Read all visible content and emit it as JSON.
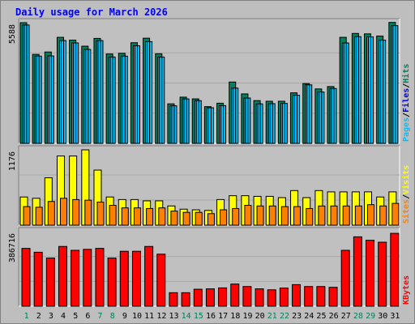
{
  "title": "Daily usage for March 2026",
  "colors": {
    "hits": "#00805c",
    "files": "#00c0ff",
    "pages": "#00c0ff",
    "visits": "#ffff00",
    "sites": "#ff8000",
    "kbytes": "#ff0000",
    "title": "#0000ff",
    "weekend_day": "#00805c",
    "weekday_day": "#0000ff",
    "panel": "#c0c0c0"
  },
  "chart_data": [
    {
      "type": "bar",
      "panel": "hits-files-pages",
      "ymax_label": "5588",
      "ylim": [
        0,
        5588
      ],
      "legend": [
        {
          "text": "Pages",
          "color": "#00c0ff"
        },
        {
          "text": "Files",
          "color": "#0000ff"
        },
        {
          "text": "Hits",
          "color": "#00805c"
        }
      ],
      "categories": [
        "1",
        "2",
        "3",
        "4",
        "5",
        "6",
        "7",
        "8",
        "9",
        "10",
        "11",
        "12",
        "13",
        "14",
        "15",
        "16",
        "17",
        "18",
        "19",
        "20",
        "21",
        "22",
        "23",
        "24",
        "25",
        "26",
        "27",
        "28",
        "29",
        "30",
        "31"
      ],
      "series": [
        {
          "name": "Hits",
          "values": [
            5588,
            4120,
            4230,
            4910,
            4780,
            4500,
            4860,
            4140,
            4170,
            4660,
            4870,
            4150,
            1830,
            2140,
            2060,
            1700,
            1860,
            2840,
            2290,
            1980,
            1950,
            1950,
            2340,
            2770,
            2520,
            2630,
            4910,
            5090,
            5070,
            4970,
            5600
          ]
        },
        {
          "name": "Files",
          "values": [
            5480,
            4040,
            4050,
            4760,
            4650,
            4350,
            4760,
            4000,
            4040,
            4520,
            4710,
            4000,
            1740,
            2060,
            1980,
            1650,
            1750,
            2560,
            2100,
            1830,
            1840,
            1850,
            2230,
            2710,
            2380,
            2540,
            4650,
            4940,
            4930,
            4780,
            5450
          ]
        },
        {
          "name": "Pages",
          "values": [
            5480,
            4040,
            4050,
            4760,
            4650,
            4350,
            4760,
            4000,
            4040,
            4520,
            4710,
            4000,
            1740,
            2060,
            1980,
            1650,
            1750,
            2560,
            2100,
            1830,
            1840,
            1850,
            2230,
            2710,
            2380,
            2540,
            4650,
            4940,
            4930,
            4780,
            5450
          ]
        }
      ]
    },
    {
      "type": "bar",
      "panel": "visits-sites",
      "ymax_label": "1176",
      "ylim": [
        0,
        1176
      ],
      "legend": [
        {
          "text": "Sites",
          "color": "#ff8000"
        },
        {
          "text": "Visits",
          "color": "#ffff00"
        }
      ],
      "categories": [
        "1",
        "2",
        "3",
        "4",
        "5",
        "6",
        "7",
        "8",
        "9",
        "10",
        "11",
        "12",
        "13",
        "14",
        "15",
        "16",
        "17",
        "18",
        "19",
        "20",
        "21",
        "22",
        "23",
        "24",
        "25",
        "26",
        "27",
        "28",
        "29",
        "30",
        "31"
      ],
      "series": [
        {
          "name": "Visits",
          "values": [
            440,
            420,
            740,
            1080,
            1080,
            1176,
            860,
            440,
            400,
            400,
            380,
            380,
            300,
            250,
            240,
            230,
            400,
            460,
            460,
            450,
            450,
            430,
            540,
            430,
            540,
            520,
            520,
            520,
            520,
            440,
            520
          ]
        },
        {
          "name": "Sites",
          "values": [
            290,
            280,
            370,
            420,
            400,
            390,
            360,
            310,
            270,
            270,
            260,
            270,
            220,
            200,
            200,
            180,
            240,
            260,
            310,
            300,
            300,
            290,
            290,
            260,
            300,
            300,
            300,
            300,
            320,
            300,
            340
          ]
        }
      ]
    },
    {
      "type": "bar",
      "panel": "kbytes",
      "ymax_label": "386716",
      "ylim": [
        0,
        386716
      ],
      "legend": [
        {
          "text": "KBytes",
          "color": "#ff0000"
        }
      ],
      "categories": [
        "1",
        "2",
        "3",
        "4",
        "5",
        "6",
        "7",
        "8",
        "9",
        "10",
        "11",
        "12",
        "13",
        "14",
        "15",
        "16",
        "17",
        "18",
        "19",
        "20",
        "21",
        "22",
        "23",
        "24",
        "25",
        "26",
        "27",
        "28",
        "29",
        "30",
        "31"
      ],
      "series": [
        {
          "name": "KBytes",
          "values": [
            300000,
            280000,
            250000,
            310000,
            290000,
            295000,
            300000,
            250000,
            285000,
            285000,
            310000,
            270000,
            70000,
            70000,
            88000,
            90000,
            95000,
            115000,
            102000,
            90000,
            85000,
            94000,
            112000,
            102000,
            102000,
            98000,
            290000,
            360000,
            342000,
            332000,
            378000
          ]
        }
      ]
    }
  ],
  "days": [
    {
      "label": "1",
      "weekend": true
    },
    {
      "label": "2",
      "weekend": false
    },
    {
      "label": "3",
      "weekend": false
    },
    {
      "label": "4",
      "weekend": false
    },
    {
      "label": "5",
      "weekend": false
    },
    {
      "label": "6",
      "weekend": false
    },
    {
      "label": "7",
      "weekend": true
    },
    {
      "label": "8",
      "weekend": true
    },
    {
      "label": "9",
      "weekend": false
    },
    {
      "label": "10",
      "weekend": false
    },
    {
      "label": "11",
      "weekend": false
    },
    {
      "label": "12",
      "weekend": false
    },
    {
      "label": "13",
      "weekend": false
    },
    {
      "label": "14",
      "weekend": true
    },
    {
      "label": "15",
      "weekend": true
    },
    {
      "label": "16",
      "weekend": false
    },
    {
      "label": "17",
      "weekend": false
    },
    {
      "label": "18",
      "weekend": false
    },
    {
      "label": "19",
      "weekend": false
    },
    {
      "label": "20",
      "weekend": false
    },
    {
      "label": "21",
      "weekend": true
    },
    {
      "label": "22",
      "weekend": true
    },
    {
      "label": "23",
      "weekend": false
    },
    {
      "label": "24",
      "weekend": false
    },
    {
      "label": "25",
      "weekend": false
    },
    {
      "label": "26",
      "weekend": false
    },
    {
      "label": "27",
      "weekend": false
    },
    {
      "label": "28",
      "weekend": true
    },
    {
      "label": "29",
      "weekend": true
    },
    {
      "label": "30",
      "weekend": false
    },
    {
      "label": "31",
      "weekend": false
    }
  ]
}
